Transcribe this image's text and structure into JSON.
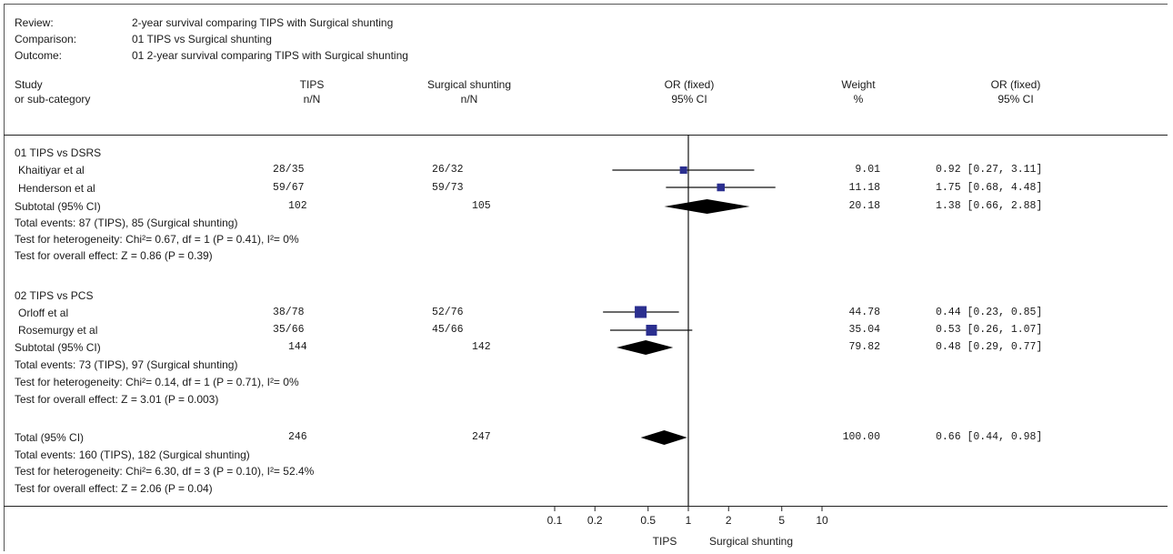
{
  "header": {
    "review_label": "Review:",
    "review_value": "2-year survival comparing TIPS with Surgical shunting",
    "comparison_label": "Comparison:",
    "comparison_value": "01 TIPS vs Surgical shunting",
    "outcome_label": "Outcome:",
    "outcome_value": "01 2-year survival comparing TIPS with Surgical shunting"
  },
  "columns": {
    "study_1": "Study",
    "study_2": "or sub-category",
    "tips_1": "TIPS",
    "tips_2": "n/N",
    "surg_1": "Surgical shunting",
    "surg_2": "n/N",
    "plot_1": "OR (fixed)",
    "plot_2": "95% CI",
    "weight_1": "Weight",
    "weight_2": "%",
    "or_1": "OR (fixed)",
    "or_2": "95% CI"
  },
  "groups": [
    {
      "title": "01 TIPS vs DSRS",
      "studies": [
        {
          "name": "Khaitiyar et al",
          "tips": "28/35",
          "surg": "26/32",
          "weight": "9.01",
          "or_text": "0.92 [0.27, 3.11]"
        },
        {
          "name": "Henderson et al",
          "tips": "59/67",
          "surg": "59/73",
          "weight": "11.18",
          "or_text": "1.75 [0.68, 4.48]"
        }
      ],
      "subtotal": {
        "label": "Subtotal (95% CI)",
        "tips": "102",
        "surg": "105",
        "weight": "20.18",
        "or_text": "1.38 [0.66, 2.88]"
      },
      "events": "Total events: 87 (TIPS), 85 (Surgical shunting)",
      "heterogeneity": "Test for heterogeneity: Chi²= 0.67, df = 1 (P = 0.41), I²= 0%",
      "overall": "Test for overall effect: Z = 0.86 (P = 0.39)"
    },
    {
      "title": "02 TIPS vs PCS",
      "studies": [
        {
          "name": "Orloff et al",
          "tips": "38/78",
          "surg": "52/76",
          "weight": "44.78",
          "or_text": "0.44 [0.23, 0.85]"
        },
        {
          "name": "Rosemurgy et al",
          "tips": "35/66",
          "surg": "45/66",
          "weight": "35.04",
          "or_text": "0.53 [0.26, 1.07]"
        }
      ],
      "subtotal": {
        "label": "Subtotal (95% CI)",
        "tips": "144",
        "surg": "142",
        "weight": "79.82",
        "or_text": "0.48 [0.29, 0.77]"
      },
      "events": "Total events: 73 (TIPS), 97 (Surgical shunting)",
      "heterogeneity": "Test for heterogeneity: Chi²= 0.14, df = 1 (P = 0.71), I²= 0%",
      "overall": "Test for overall effect: Z = 3.01 (P = 0.003)"
    }
  ],
  "total": {
    "label": "Total (95% CI)",
    "tips": "246",
    "surg": "247",
    "weight": "100.00",
    "or_text": "0.66 [0.44, 0.98]",
    "events": "Total events: 160 (TIPS), 182 (Surgical shunting)",
    "heterogeneity": "Test for heterogeneity: Chi²= 6.30, df = 3 (P = 0.10), I²= 52.4%",
    "overall": "Test for overall effect: Z = 2.06 (P = 0.04)"
  },
  "axis": {
    "favours_left": "TIPS",
    "favours_right": "Surgical shunting"
  },
  "colors": {
    "study_marker": "#2b2f8f",
    "diamond": "#000000"
  },
  "chart_data": {
    "type": "forest",
    "x_scale": "log",
    "x_range": [
      0.1,
      10
    ],
    "x_ticks": [
      {
        "value": 0.1,
        "label": "0.1"
      },
      {
        "value": 0.2,
        "label": "0.2"
      },
      {
        "value": 0.5,
        "label": "0.5"
      },
      {
        "value": 1,
        "label": "1"
      },
      {
        "value": 2,
        "label": "2"
      },
      {
        "value": 5,
        "label": "5"
      },
      {
        "value": 10,
        "label": "10"
      }
    ],
    "rows": [
      {
        "id": "khaitiyar",
        "kind": "study",
        "or": 0.92,
        "lo": 0.27,
        "hi": 3.11,
        "weight": 9.01
      },
      {
        "id": "henderson",
        "kind": "study",
        "or": 1.75,
        "lo": 0.68,
        "hi": 4.48,
        "weight": 11.18
      },
      {
        "id": "subtotal-dsrs",
        "kind": "pooled",
        "or": 1.38,
        "lo": 0.66,
        "hi": 2.88,
        "weight": 20.18
      },
      {
        "id": "orloff",
        "kind": "study",
        "or": 0.44,
        "lo": 0.23,
        "hi": 0.85,
        "weight": 44.78
      },
      {
        "id": "rosemurgy",
        "kind": "study",
        "or": 0.53,
        "lo": 0.26,
        "hi": 1.07,
        "weight": 35.04
      },
      {
        "id": "subtotal-pcs",
        "kind": "pooled",
        "or": 0.48,
        "lo": 0.29,
        "hi": 0.77,
        "weight": 79.82
      },
      {
        "id": "total",
        "kind": "pooled",
        "or": 0.66,
        "lo": 0.44,
        "hi": 0.98,
        "weight": 100.0
      }
    ]
  }
}
